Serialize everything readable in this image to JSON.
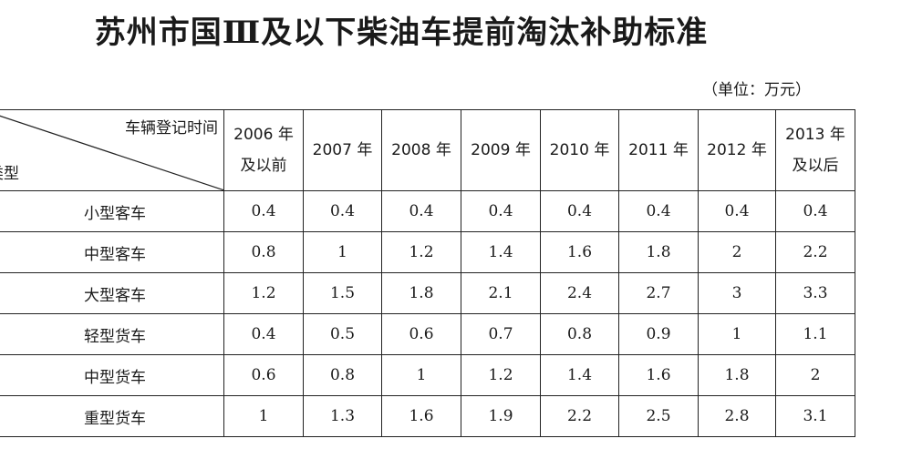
{
  "header": {
    "title": "苏州市国Ⅲ及以下柴油车提前淘汰补助标准",
    "unit": "（单位：万元）"
  },
  "table": {
    "corner": {
      "top": "车辆登记时间",
      "bottom": "类型"
    },
    "columns": [
      [
        "2006 年",
        "及以前"
      ],
      [
        "2007 年"
      ],
      [
        "2008 年"
      ],
      [
        "2009 年"
      ],
      [
        "2010 年"
      ],
      [
        "2011 年"
      ],
      [
        "2012 年"
      ],
      [
        "2013 年",
        "及以后"
      ]
    ],
    "rows": [
      {
        "label": "小型客车",
        "values": [
          "0.4",
          "0.4",
          "0.4",
          "0.4",
          "0.4",
          "0.4",
          "0.4",
          "0.4"
        ]
      },
      {
        "label": "中型客车",
        "values": [
          "0.8",
          "1",
          "1.2",
          "1.4",
          "1.6",
          "1.8",
          "2",
          "2.2"
        ]
      },
      {
        "label": "大型客车",
        "values": [
          "1.2",
          "1.5",
          "1.8",
          "2.1",
          "2.4",
          "2.7",
          "3",
          "3.3"
        ]
      },
      {
        "label": "轻型货车",
        "values": [
          "0.4",
          "0.5",
          "0.6",
          "0.7",
          "0.8",
          "0.9",
          "1",
          "1.1"
        ]
      },
      {
        "label": "中型货车",
        "values": [
          "0.6",
          "0.8",
          "1",
          "1.2",
          "1.4",
          "1.6",
          "1.8",
          "2"
        ]
      },
      {
        "label": "重型货车",
        "values": [
          "1",
          "1.3",
          "1.6",
          "1.9",
          "2.2",
          "2.5",
          "2.8",
          "3.1"
        ]
      }
    ]
  }
}
